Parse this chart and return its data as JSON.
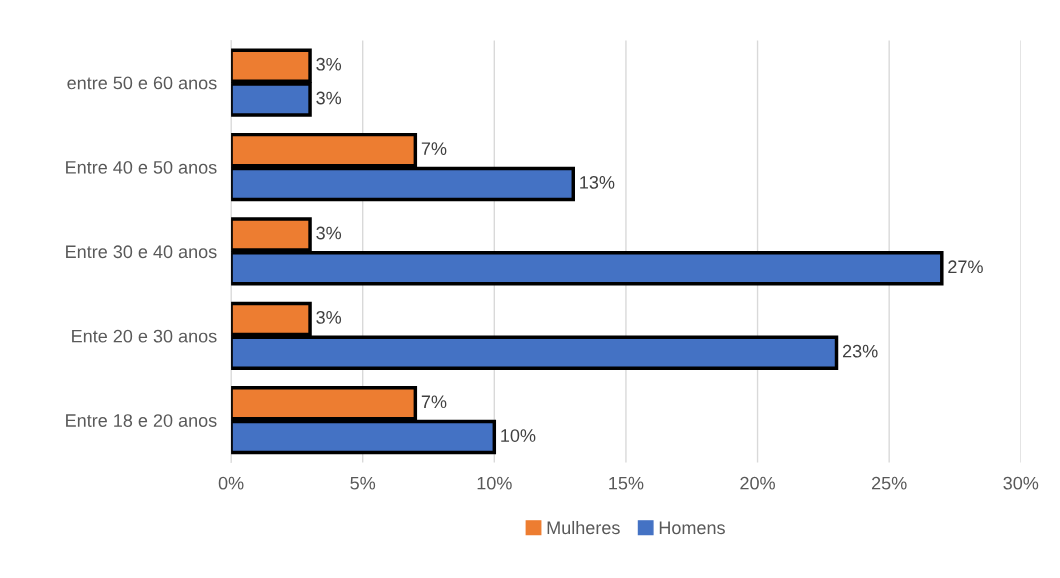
{
  "chart_data": {
    "type": "bar",
    "orientation": "horizontal",
    "categories": [
      "entre 50 e 60 anos",
      "Entre 40 e 50 anos",
      "Entre 30 e 40 anos",
      "Ente 20 e 30 anos",
      "Entre 18 e 20 anos"
    ],
    "series": [
      {
        "name": "Mulheres",
        "color": "#ed7d31",
        "values": [
          3,
          7,
          3,
          3,
          7
        ],
        "value_labels": [
          "3%",
          "7%",
          "3%",
          "3%",
          "7%"
        ]
      },
      {
        "name": "Homens",
        "color": "#4472c4",
        "values": [
          3,
          13,
          27,
          23,
          10
        ],
        "value_labels": [
          "3%",
          "13%",
          "27%",
          "23%",
          "10%"
        ]
      }
    ],
    "xlim": [
      0,
      30
    ],
    "xticks": [
      {
        "value": 0,
        "label": "0%"
      },
      {
        "value": 5,
        "label": "5%"
      },
      {
        "value": 10,
        "label": "10%"
      },
      {
        "value": 15,
        "label": "15%"
      },
      {
        "value": 20,
        "label": "20%"
      },
      {
        "value": 25,
        "label": "25%"
      },
      {
        "value": 30,
        "label": "30%"
      }
    ],
    "grid": "x",
    "legend": "bottom"
  }
}
